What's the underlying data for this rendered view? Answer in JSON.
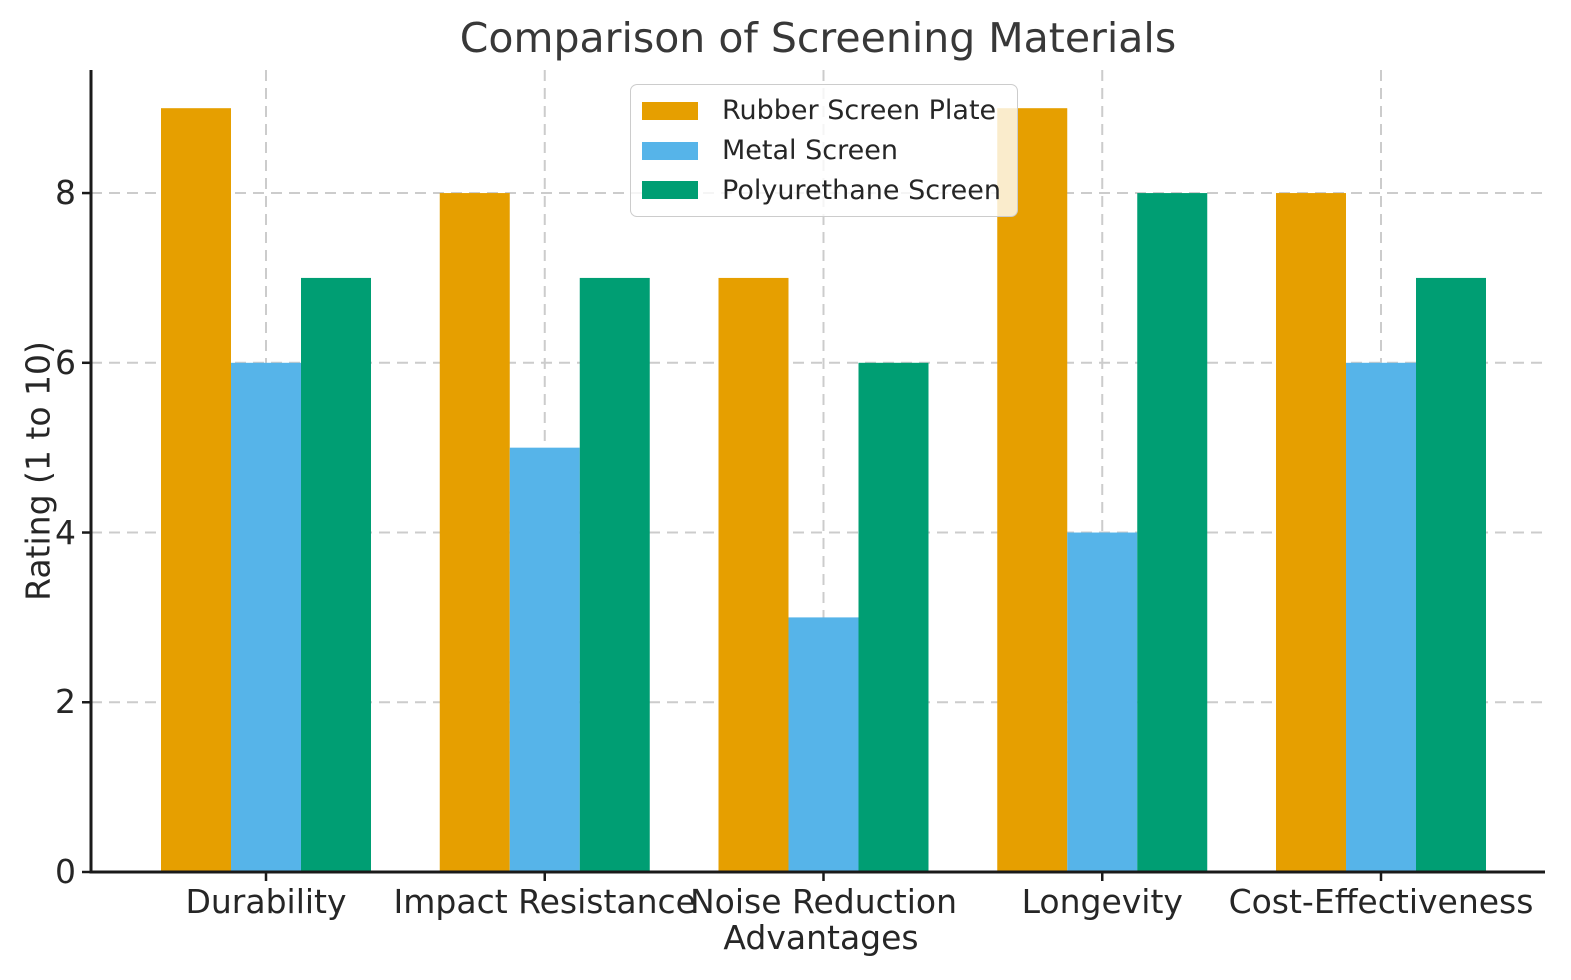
{
  "figure": {
    "background": "#ffffff"
  },
  "colors": {
    "grid": "#cccccc",
    "spine": "#1a1a1a",
    "tick": "#1a1a1a",
    "text": "#262626",
    "title": "#383838",
    "legend_border": "#cccccc",
    "legend_background": "rgba(255,255,255,0.8)"
  },
  "chart_data": {
    "type": "bar",
    "title": "Comparison of Screening Materials",
    "xlabel": "Advantages",
    "ylabel": "Rating (1 to 10)",
    "categories": [
      "Durability",
      "Impact Resistance",
      "Noise Reduction",
      "Longevity",
      "Cost-Effectiveness"
    ],
    "series": [
      {
        "name": "Rubber Screen Plate",
        "color": "#E69F00",
        "values": [
          9,
          8,
          7,
          9,
          8
        ]
      },
      {
        "name": "Metal Screen",
        "color": "#56B4E9",
        "values": [
          6,
          5,
          3,
          4,
          6
        ]
      },
      {
        "name": "Polyurethane Screen",
        "color": "#009E73",
        "values": [
          7,
          7,
          6,
          8,
          7
        ]
      }
    ],
    "yticks": [
      0,
      2,
      4,
      6,
      8
    ],
    "ylim": [
      0,
      9.45
    ],
    "grid": true,
    "grid_style": "dashed",
    "legend_location": "upper center"
  }
}
